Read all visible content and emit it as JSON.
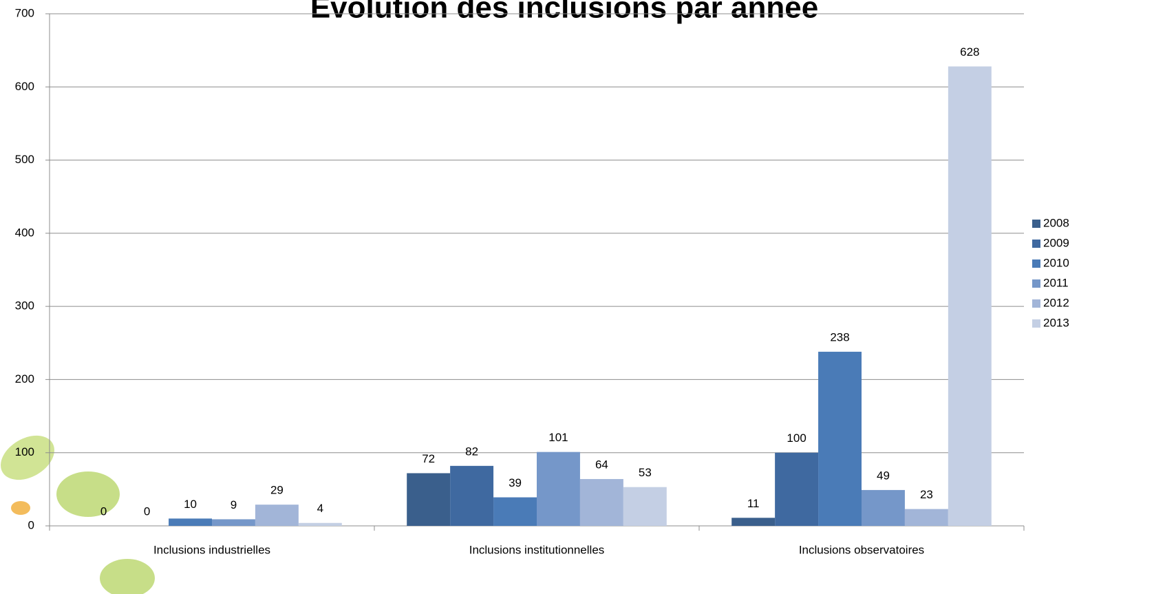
{
  "chart_data": {
    "type": "bar",
    "title": "Évolution des inclusions par année",
    "categories": [
      "Inclusions industrielles",
      "Inclusions institutionnelles",
      "Inclusions observatoires"
    ],
    "series": [
      {
        "name": "2008",
        "color": "#3a5f8c",
        "values": [
          0,
          72,
          11
        ]
      },
      {
        "name": "2009",
        "color": "#3f69a0",
        "values": [
          0,
          82,
          100
        ]
      },
      {
        "name": "2010",
        "color": "#4a7bb7",
        "values": [
          10,
          39,
          238
        ]
      },
      {
        "name": "2011",
        "color": "#7597c9",
        "values": [
          9,
          101,
          49
        ]
      },
      {
        "name": "2012",
        "color": "#a2b5d8",
        "values": [
          29,
          64,
          23
        ]
      },
      {
        "name": "2013",
        "color": "#c4cfe4",
        "values": [
          4,
          53,
          628
        ]
      }
    ],
    "ylim": [
      0,
      700
    ],
    "yticks": [
      0,
      100,
      200,
      300,
      400,
      500,
      600,
      700
    ],
    "grid": true,
    "legend": "right"
  }
}
